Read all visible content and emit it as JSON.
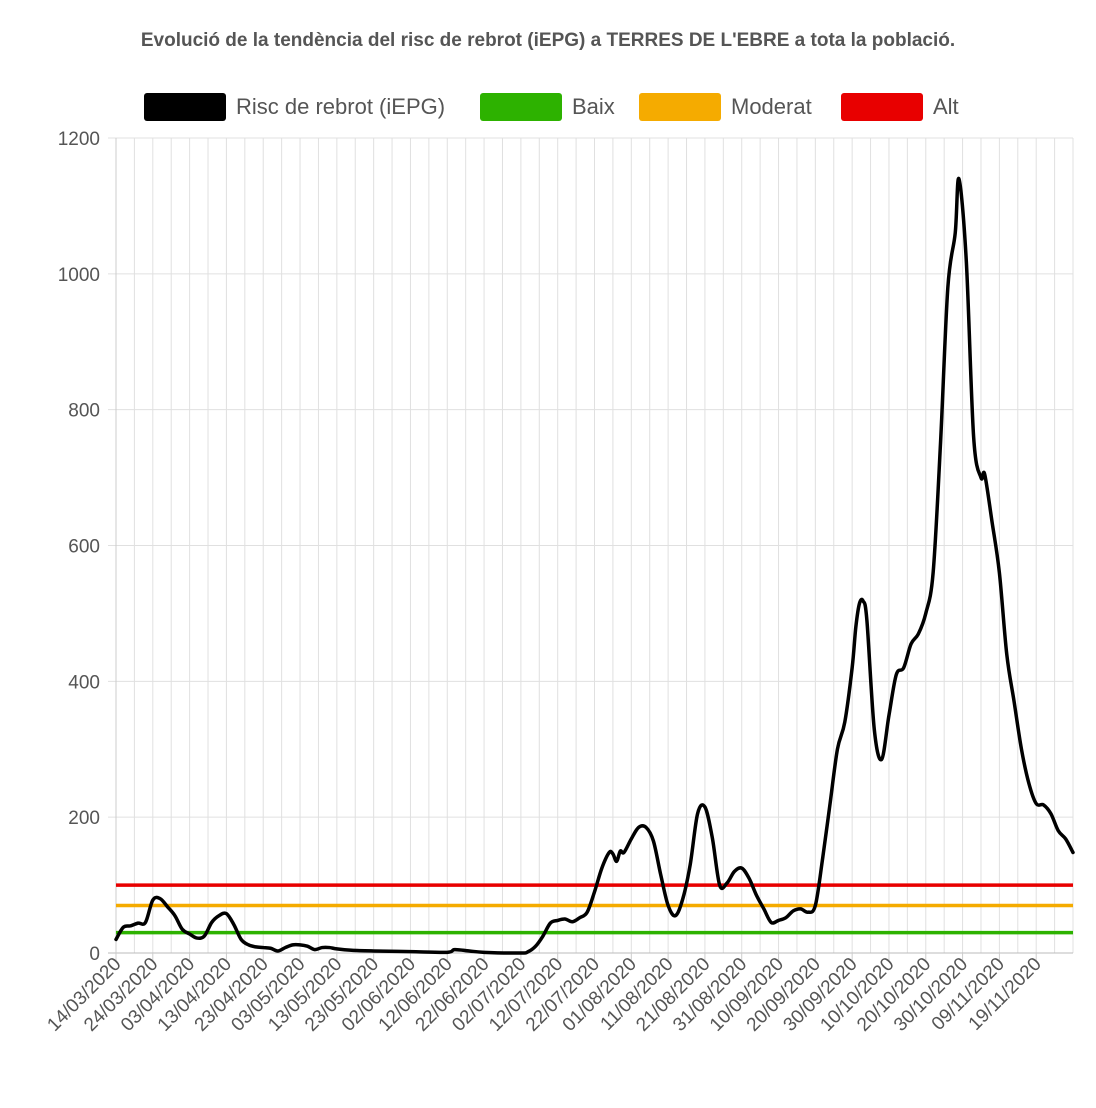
{
  "chart_data": {
    "type": "line",
    "title": "Evolució de la tendència del risc de rebrot (iEPG) a TERRES DE L'EBRE a tota la població.",
    "ylim": [
      0,
      1200
    ],
    "yticks": [
      0,
      200,
      400,
      600,
      800,
      1000,
      1200
    ],
    "x_start": "14/03/2020",
    "x_end": "29/11/2020",
    "xticks": [
      "14/03/2020",
      "24/03/2020",
      "03/04/2020",
      "13/04/2020",
      "23/04/2020",
      "03/05/2020",
      "13/05/2020",
      "23/05/2020",
      "02/06/2020",
      "12/06/2020",
      "22/06/2020",
      "02/07/2020",
      "12/07/2020",
      "22/07/2020",
      "01/08/2020",
      "11/08/2020",
      "21/08/2020",
      "31/08/2020",
      "10/09/2020",
      "20/09/2020",
      "30/09/2020",
      "10/10/2020",
      "20/10/2020",
      "30/10/2020",
      "09/11/2020",
      "19/11/2020"
    ],
    "grid": true,
    "legend_position": "top-center",
    "series": [
      {
        "name": "Risc de rebrot (iEPG)",
        "color": "#000000",
        "points": [
          [
            "14/03/2020",
            20
          ],
          [
            "16/03/2020",
            38
          ],
          [
            "18/03/2020",
            40
          ],
          [
            "20/03/2020",
            44
          ],
          [
            "22/03/2020",
            45
          ],
          [
            "24/03/2020",
            78
          ],
          [
            "26/03/2020",
            80
          ],
          [
            "28/03/2020",
            68
          ],
          [
            "30/03/2020",
            55
          ],
          [
            "01/04/2020",
            35
          ],
          [
            "03/04/2020",
            28
          ],
          [
            "05/04/2020",
            22
          ],
          [
            "07/04/2020",
            25
          ],
          [
            "09/04/2020",
            45
          ],
          [
            "11/04/2020",
            55
          ],
          [
            "13/04/2020",
            58
          ],
          [
            "15/04/2020",
            42
          ],
          [
            "17/04/2020",
            20
          ],
          [
            "19/04/2020",
            12
          ],
          [
            "21/04/2020",
            9
          ],
          [
            "23/04/2020",
            8
          ],
          [
            "25/04/2020",
            7
          ],
          [
            "27/04/2020",
            3
          ],
          [
            "29/04/2020",
            8
          ],
          [
            "01/05/2020",
            12
          ],
          [
            "03/05/2020",
            12
          ],
          [
            "05/05/2020",
            10
          ],
          [
            "07/05/2020",
            5
          ],
          [
            "09/05/2020",
            8
          ],
          [
            "11/05/2020",
            8
          ],
          [
            "13/05/2020",
            6
          ],
          [
            "17/05/2020",
            4
          ],
          [
            "23/05/2020",
            3
          ],
          [
            "02/06/2020",
            2
          ],
          [
            "12/06/2020",
            1
          ],
          [
            "14/06/2020",
            5
          ],
          [
            "18/06/2020",
            3
          ],
          [
            "22/06/2020",
            1
          ],
          [
            "02/07/2020",
            0
          ],
          [
            "04/07/2020",
            2
          ],
          [
            "06/07/2020",
            10
          ],
          [
            "08/07/2020",
            25
          ],
          [
            "10/07/2020",
            44
          ],
          [
            "12/07/2020",
            48
          ],
          [
            "14/07/2020",
            50
          ],
          [
            "16/07/2020",
            46
          ],
          [
            "18/07/2020",
            52
          ],
          [
            "20/07/2020",
            60
          ],
          [
            "22/07/2020",
            90
          ],
          [
            "24/07/2020",
            125
          ],
          [
            "26/07/2020",
            148
          ],
          [
            "27/07/2020",
            146
          ],
          [
            "28/07/2020",
            135
          ],
          [
            "29/07/2020",
            150
          ],
          [
            "30/07/2020",
            148
          ],
          [
            "01/08/2020",
            168
          ],
          [
            "03/08/2020",
            185
          ],
          [
            "05/08/2020",
            185
          ],
          [
            "07/08/2020",
            165
          ],
          [
            "09/08/2020",
            115
          ],
          [
            "11/08/2020",
            70
          ],
          [
            "13/08/2020",
            55
          ],
          [
            "15/08/2020",
            80
          ],
          [
            "17/08/2020",
            130
          ],
          [
            "19/08/2020",
            205
          ],
          [
            "21/08/2020",
            215
          ],
          [
            "23/08/2020",
            170
          ],
          [
            "25/08/2020",
            100
          ],
          [
            "27/08/2020",
            103
          ],
          [
            "29/08/2020",
            120
          ],
          [
            "31/08/2020",
            125
          ],
          [
            "02/09/2020",
            110
          ],
          [
            "04/09/2020",
            85
          ],
          [
            "06/09/2020",
            65
          ],
          [
            "08/09/2020",
            45
          ],
          [
            "10/09/2020",
            48
          ],
          [
            "12/09/2020",
            52
          ],
          [
            "14/09/2020",
            62
          ],
          [
            "16/09/2020",
            65
          ],
          [
            "18/09/2020",
            60
          ],
          [
            "20/09/2020",
            70
          ],
          [
            "22/09/2020",
            140
          ],
          [
            "24/09/2020",
            220
          ],
          [
            "26/09/2020",
            300
          ],
          [
            "28/09/2020",
            340
          ],
          [
            "30/09/2020",
            420
          ],
          [
            "01/10/2020",
            480
          ],
          [
            "02/10/2020",
            515
          ],
          [
            "03/10/2020",
            518
          ],
          [
            "04/10/2020",
            490
          ],
          [
            "06/10/2020",
            330
          ],
          [
            "08/10/2020",
            285
          ],
          [
            "10/10/2020",
            350
          ],
          [
            "12/10/2020",
            410
          ],
          [
            "14/10/2020",
            420
          ],
          [
            "16/10/2020",
            455
          ],
          [
            "18/10/2020",
            470
          ],
          [
            "20/10/2020",
            500
          ],
          [
            "22/10/2020",
            560
          ],
          [
            "24/10/2020",
            750
          ],
          [
            "26/10/2020",
            980
          ],
          [
            "28/10/2020",
            1060
          ],
          [
            "29/10/2020",
            1140
          ],
          [
            "31/10/2020",
            1020
          ],
          [
            "02/11/2020",
            760
          ],
          [
            "04/11/2020",
            700
          ],
          [
            "05/11/2020",
            705
          ],
          [
            "07/11/2020",
            635
          ],
          [
            "09/11/2020",
            560
          ],
          [
            "11/11/2020",
            440
          ],
          [
            "13/11/2020",
            370
          ],
          [
            "15/11/2020",
            300
          ],
          [
            "17/11/2020",
            250
          ],
          [
            "19/11/2020",
            220
          ],
          [
            "21/11/2020",
            218
          ],
          [
            "23/11/2020",
            205
          ],
          [
            "25/11/2020",
            180
          ],
          [
            "27/11/2020",
            168
          ],
          [
            "29/11/2020",
            148
          ]
        ]
      },
      {
        "name": "Baix",
        "color": "#2db200",
        "constant": 30
      },
      {
        "name": "Moderat",
        "color": "#f5ab00",
        "constant": 70
      },
      {
        "name": "Alt",
        "color": "#e80000",
        "constant": 100
      }
    ]
  }
}
